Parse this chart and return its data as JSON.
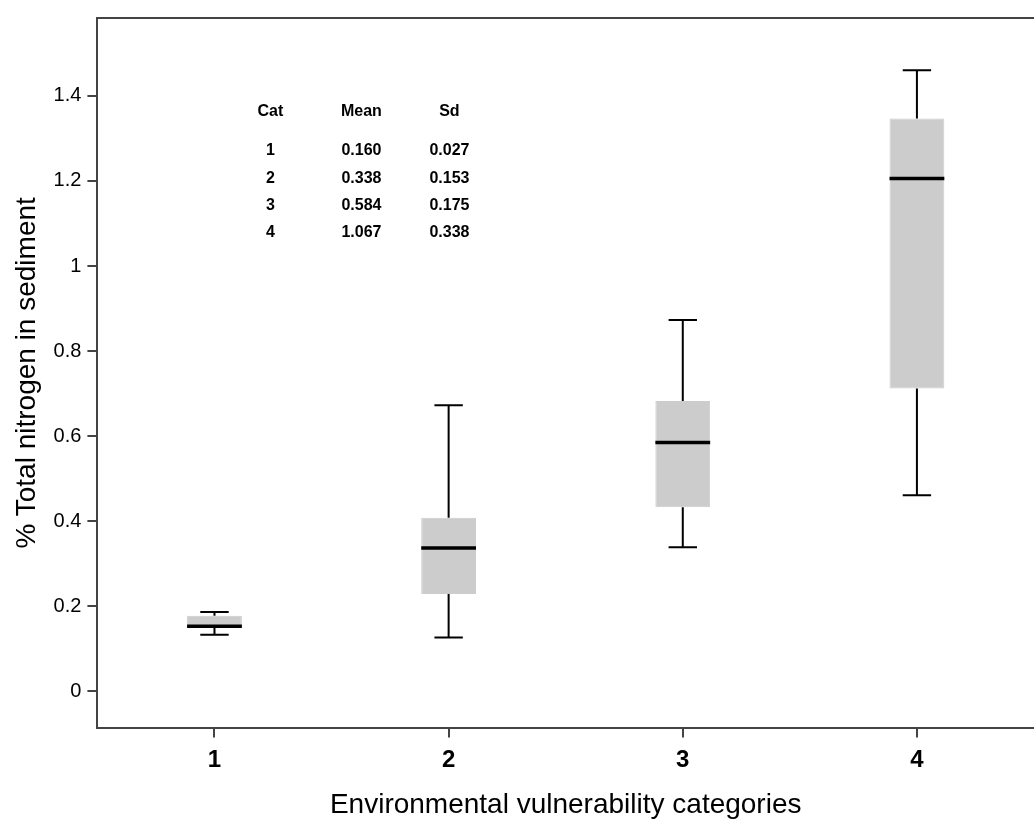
{
  "chart_data": {
    "type": "box",
    "xlabel": "Environmental vulnerability categories",
    "ylabel": "% Total nitrogen in sediment",
    "categories": [
      "1",
      "2",
      "3",
      "4"
    ],
    "boxes": [
      {
        "low": 0.133,
        "q1": 0.149,
        "median": 0.153,
        "q3": 0.178,
        "high": 0.187
      },
      {
        "low": 0.127,
        "q1": 0.229,
        "median": 0.337,
        "q3": 0.408,
        "high": 0.673
      },
      {
        "low": 0.339,
        "q1": 0.433,
        "median": 0.585,
        "q3": 0.683,
        "high": 0.873
      },
      {
        "low": 0.461,
        "q1": 0.712,
        "median": 1.206,
        "q3": 1.347,
        "high": 1.46
      }
    ],
    "color": "#cccccc",
    "ylim": [
      -0.085,
      1.583
    ],
    "yticks": [
      0,
      0.2,
      0.4,
      0.6,
      0.8,
      1,
      1.2,
      1.4
    ],
    "grid": false,
    "legend": false,
    "annotations": [
      "Cat",
      "Mean",
      "Sd",
      "1",
      "0.160",
      "0.027",
      "2",
      "0.338",
      "0.153",
      "3",
      "0.584",
      "0.175",
      "4",
      "1.067",
      "0.338"
    ]
  }
}
